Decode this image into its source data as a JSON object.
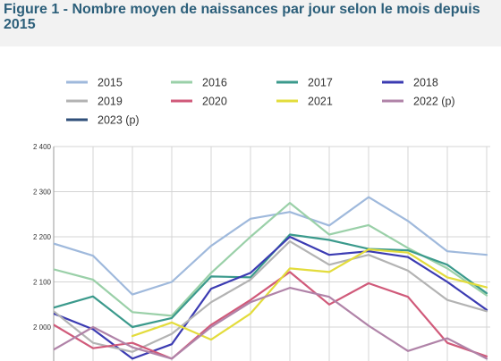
{
  "figure_title": "Figure 1 - Nombre moyen de naissances par jour selon le mois depuis 2015",
  "chart_data": {
    "type": "line",
    "title": "Figure 1 - Nombre moyen de naissances par jour selon le mois depuis 2015",
    "xlabel": "",
    "ylabel": "",
    "x": [
      1,
      2,
      3,
      4,
      5,
      6,
      7,
      8,
      9,
      10,
      11,
      12
    ],
    "ylim": [
      1930,
      2400
    ],
    "yticks": [
      2000,
      2100,
      2200,
      2300,
      2400
    ],
    "ytick_labels": [
      "2 000",
      "2 100",
      "2 200",
      "2 300",
      "2 400"
    ],
    "grid": true,
    "legend_position": "top",
    "series": [
      {
        "name": "2015",
        "color": "#9fb9dc",
        "values": [
          2185,
          2158,
          2072,
          2100,
          2180,
          2240,
          2255,
          2225,
          2288,
          2235,
          2168,
          2160
        ]
      },
      {
        "name": "2016",
        "color": "#9ad0a8",
        "values": [
          2128,
          2105,
          2033,
          2025,
          2120,
          2200,
          2275,
          2205,
          2226,
          2175,
          2130,
          2070
        ]
      },
      {
        "name": "2017",
        "color": "#3b9a8c",
        "values": [
          2043,
          2068,
          2000,
          2020,
          2112,
          2110,
          2205,
          2193,
          2173,
          2170,
          2138,
          2075
        ]
      },
      {
        "name": "2018",
        "color": "#3b3bb2",
        "values": [
          2030,
          1995,
          1930,
          1962,
          2085,
          2120,
          2200,
          2160,
          2168,
          2155,
          2100,
          2038
        ]
      },
      {
        "name": "2019",
        "color": "#b3b3b3",
        "values": [
          2035,
          1965,
          1945,
          1985,
          2055,
          2105,
          2190,
          2138,
          2160,
          2125,
          2060,
          2035
        ]
      },
      {
        "name": "2020",
        "color": "#d05a7a",
        "values": [
          2005,
          1953,
          1965,
          1930,
          2005,
          2060,
          2122,
          2050,
          2097,
          2067,
          1965,
          1935
        ]
      },
      {
        "name": "2021",
        "color": "#e3dc3c",
        "values": [
          null,
          null,
          1980,
          2010,
          1972,
          2030,
          2130,
          2122,
          2172,
          2165,
          2110,
          2088
        ]
      },
      {
        "name": "2022 (p)",
        "color": "#b083a8",
        "values": [
          1950,
          2000,
          1955,
          1930,
          2000,
          2055,
          2087,
          2067,
          2003,
          1947,
          1975,
          1930
        ]
      },
      {
        "name": "2023 (p)",
        "color": "#2f4f7a",
        "values": [
          null,
          null,
          null,
          null,
          null,
          null,
          null,
          null,
          null,
          null,
          null,
          null
        ]
      }
    ]
  }
}
